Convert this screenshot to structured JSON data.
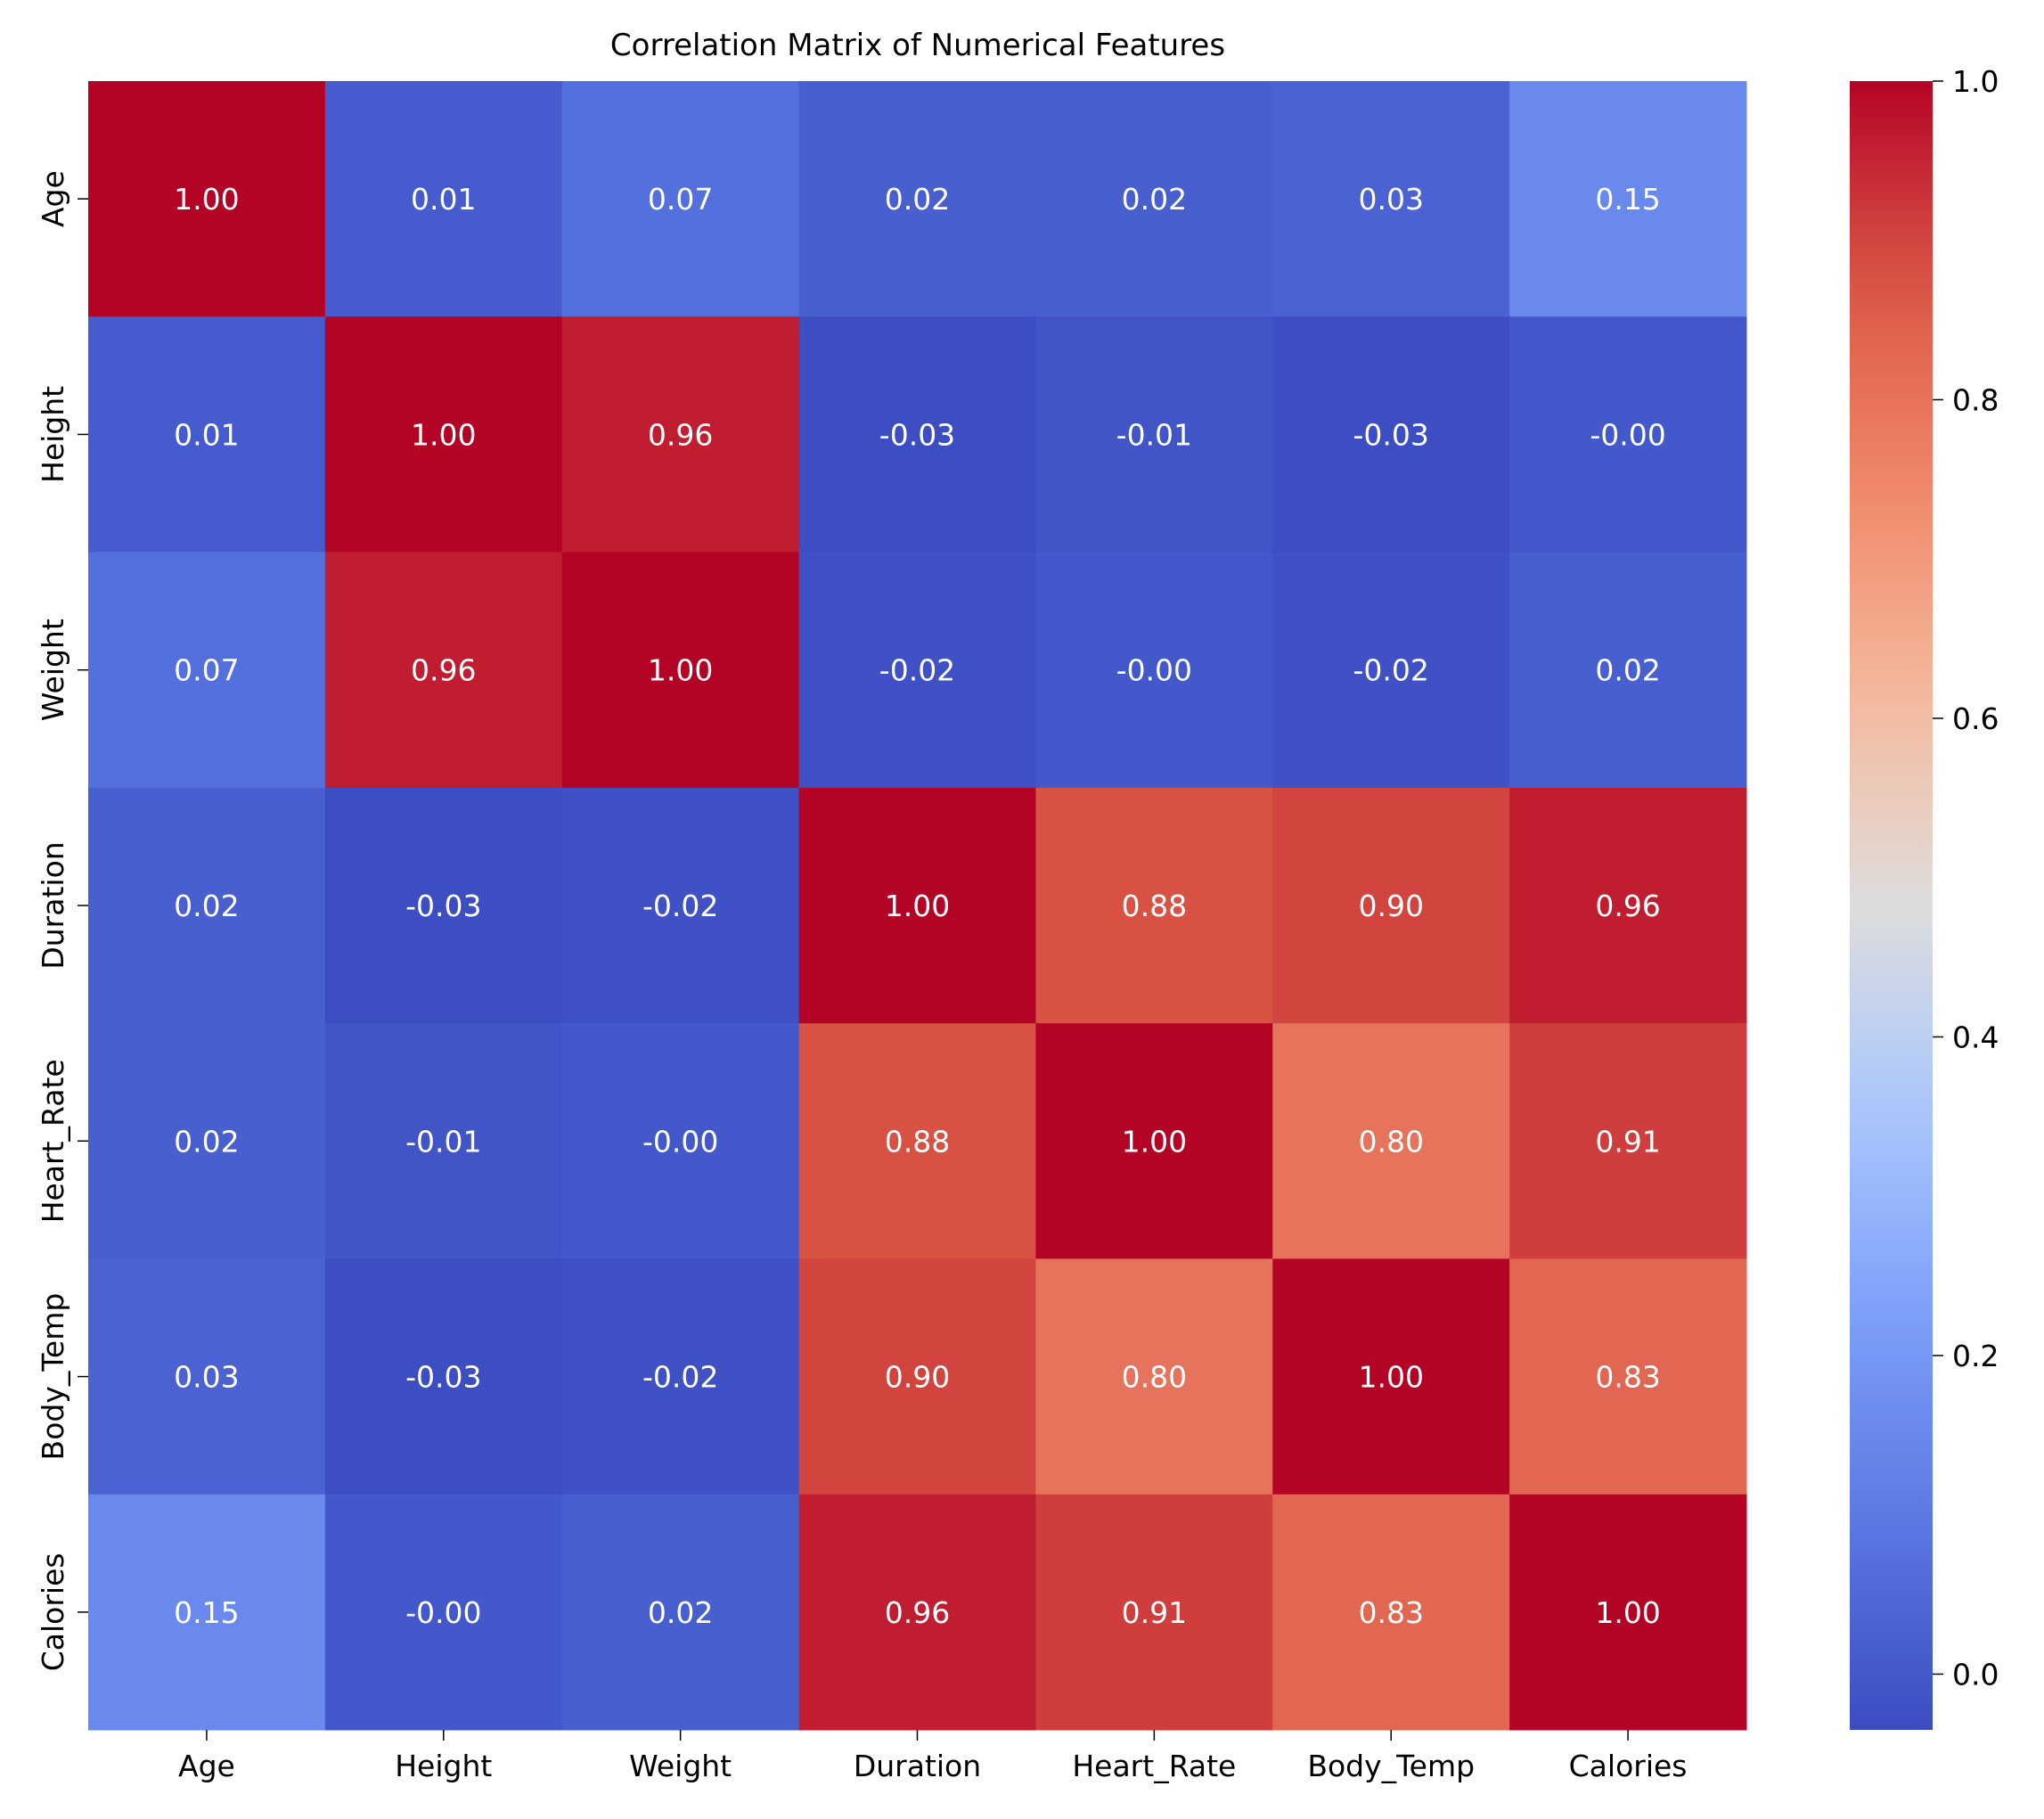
{
  "chart_data": {
    "type": "heatmap",
    "title": "Correlation Matrix of Numerical Features",
    "labels": [
      "Age",
      "Height",
      "Weight",
      "Duration",
      "Heart_Rate",
      "Body_Temp",
      "Calories"
    ],
    "values": [
      [
        1.0,
        0.01,
        0.07,
        0.02,
        0.02,
        0.03,
        0.15
      ],
      [
        0.01,
        1.0,
        0.96,
        -0.03,
        -0.01,
        -0.03,
        -0.0
      ],
      [
        0.07,
        0.96,
        1.0,
        -0.02,
        -0.0,
        -0.02,
        0.02
      ],
      [
        0.02,
        -0.03,
        -0.02,
        1.0,
        0.88,
        0.9,
        0.96
      ],
      [
        0.02,
        -0.01,
        -0.0,
        0.88,
        1.0,
        0.8,
        0.91
      ],
      [
        0.03,
        -0.03,
        -0.02,
        0.9,
        0.8,
        1.0,
        0.83
      ],
      [
        0.15,
        -0.0,
        0.02,
        0.96,
        0.91,
        0.83,
        1.0
      ]
    ],
    "annotation_labels": [
      [
        "1.00",
        "0.01",
        "0.07",
        "0.02",
        "0.02",
        "0.03",
        "0.15"
      ],
      [
        "0.01",
        "1.00",
        "0.96",
        "-0.03",
        "-0.01",
        "-0.03",
        "-0.00"
      ],
      [
        "0.07",
        "0.96",
        "1.00",
        "-0.02",
        "-0.00",
        "-0.02",
        "0.02"
      ],
      [
        "0.02",
        "-0.03",
        "-0.02",
        "1.00",
        "0.88",
        "0.90",
        "0.96"
      ],
      [
        "0.02",
        "-0.01",
        "-0.00",
        "0.88",
        "1.00",
        "0.80",
        "0.91"
      ],
      [
        "0.03",
        "-0.03",
        "-0.02",
        "0.90",
        "0.80",
        "1.00",
        "0.83"
      ],
      [
        "0.15",
        "-0.00",
        "0.02",
        "0.96",
        "0.91",
        "0.83",
        "1.00"
      ]
    ],
    "colormap": "coolwarm",
    "vmin": -0.035,
    "vmax": 1.0,
    "colorbar_ticks": [
      0.0,
      0.2,
      0.4,
      0.6,
      0.8,
      1.0
    ],
    "colorbar_tick_labels": [
      "0.0",
      "0.2",
      "0.4",
      "0.6",
      "0.8",
      "1.0"
    ],
    "annotation_color": "#ffffff"
  }
}
